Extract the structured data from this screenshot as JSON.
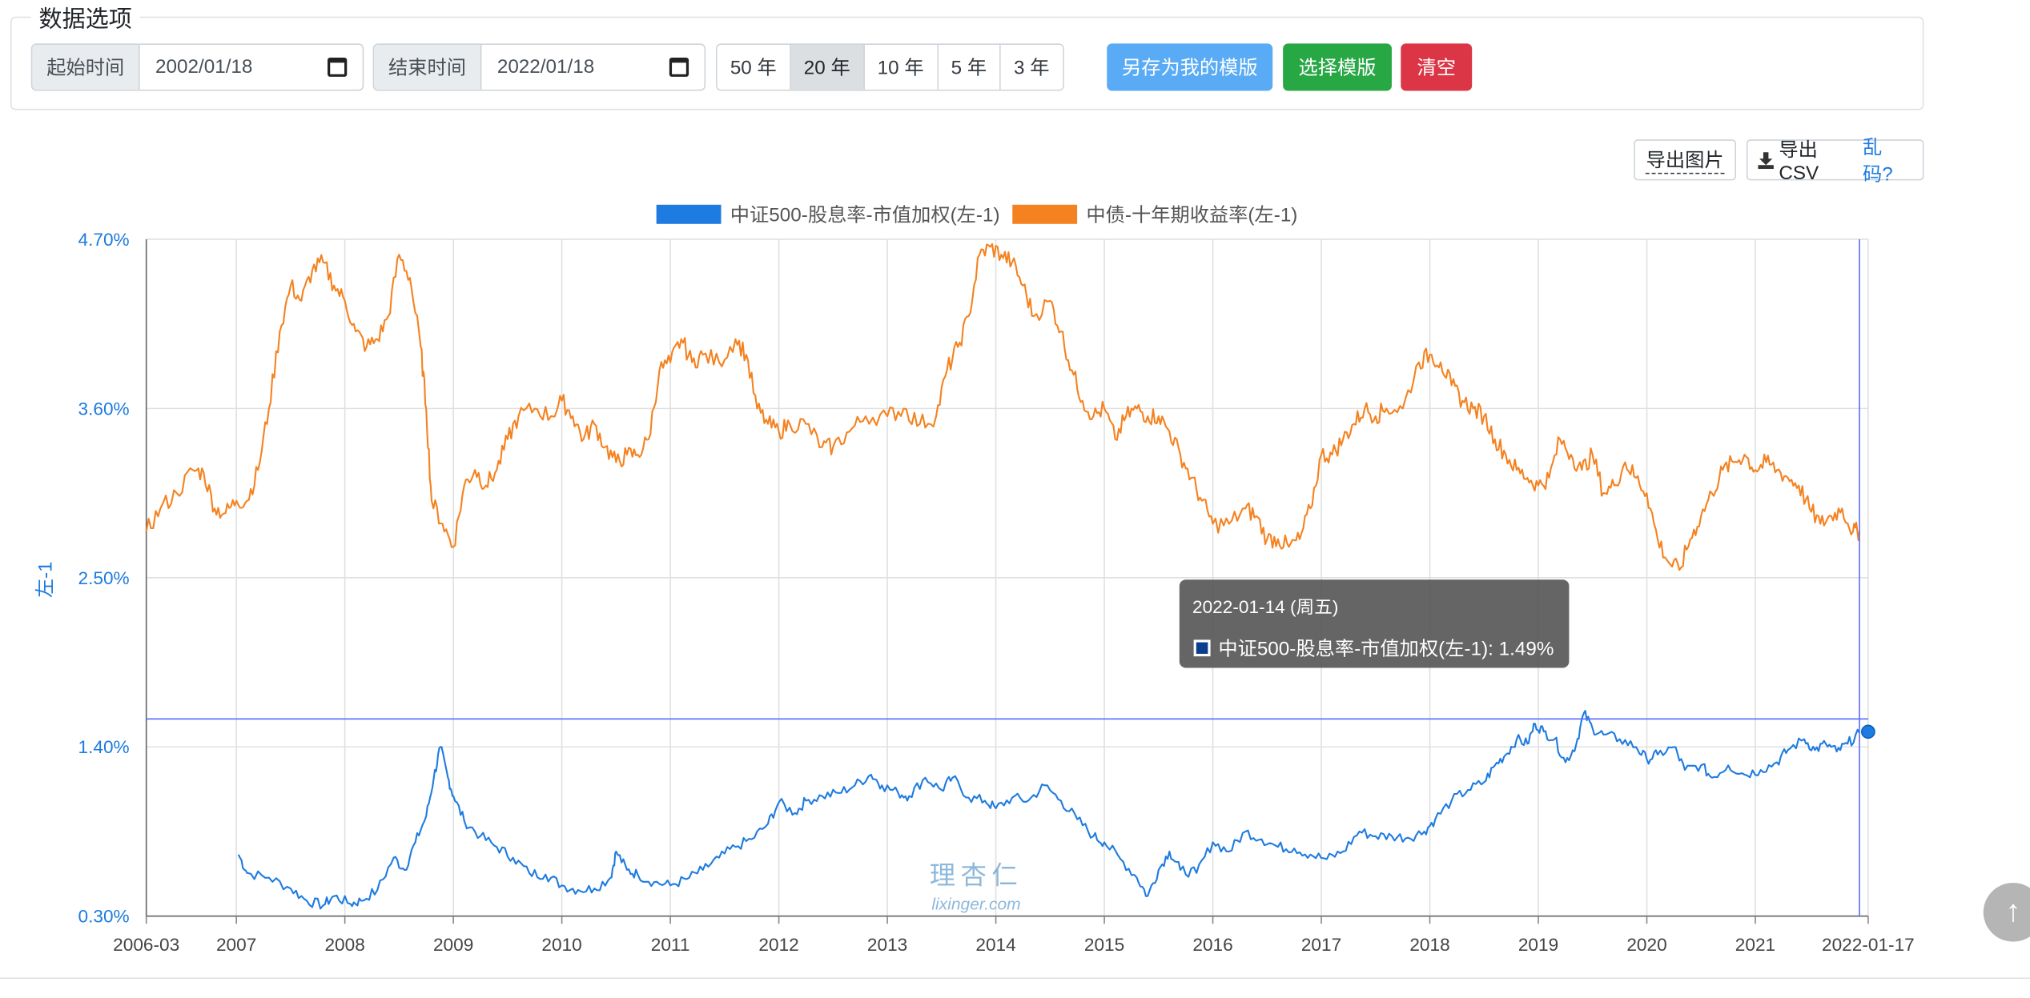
{
  "options": {
    "legend": "数据选项",
    "start_label": "起始时间",
    "start_value": "2002/01/18",
    "end_label": "结束时间",
    "end_value": "2022/01/18",
    "ranges": [
      "50 年",
      "20 年",
      "10 年",
      "5 年",
      "3 年"
    ],
    "active_range": "20 年",
    "save_template": "另存为我的模版",
    "choose_template": "选择模版",
    "clear": "清空"
  },
  "tools": {
    "export_image": "导出图片",
    "export_csv": "导出CSV",
    "garbled": "乱码?"
  },
  "tooltip": {
    "date": "2022-01-14 (周五)",
    "text": "中证500-股息率-市值加权(左-1): 1.49%"
  },
  "watermark": {
    "line1": "理杏仁",
    "line2": "lixinger.com"
  },
  "colors": {
    "blue": "#1e7be0",
    "orange": "#f58220",
    "axis_text": "#1e7be0",
    "save_btn": "#5aabf5",
    "choose_btn": "#28a745",
    "clear_btn": "#dc3545"
  },
  "chart_data": {
    "type": "line",
    "ylabel": "左-1",
    "y_ticks": [
      "0.30%",
      "1.40%",
      "2.50%",
      "3.60%",
      "4.70%"
    ],
    "ylim": [
      0.3,
      4.7
    ],
    "x_ticks": [
      {
        "label": "2006-03",
        "year": 2006.17
      },
      {
        "label": "2007",
        "year": 2007
      },
      {
        "label": "2008",
        "year": 2008
      },
      {
        "label": "2009",
        "year": 2009
      },
      {
        "label": "2010",
        "year": 2010
      },
      {
        "label": "2011",
        "year": 2011
      },
      {
        "label": "2012",
        "year": 2012
      },
      {
        "label": "2013",
        "year": 2013
      },
      {
        "label": "2014",
        "year": 2014
      },
      {
        "label": "2015",
        "year": 2015
      },
      {
        "label": "2016",
        "year": 2016
      },
      {
        "label": "2017",
        "year": 2017
      },
      {
        "label": "2018",
        "year": 2018
      },
      {
        "label": "2019",
        "year": 2019
      },
      {
        "label": "2020",
        "year": 2020
      },
      {
        "label": "2021",
        "year": 2021
      },
      {
        "label": "2022-01-17",
        "year": 2022.04
      }
    ],
    "xlim": [
      2006.17,
      2022.04
    ],
    "crosshair": {
      "year": 2021.96,
      "value": 1.49
    },
    "legend_position": "top-center",
    "grid": true,
    "series": [
      {
        "name": "中证500-股息率-市值加权(左-1)",
        "color": "#1e7be0",
        "points": [
          [
            2007.02,
            0.7
          ],
          [
            2007.1,
            0.58
          ],
          [
            2007.3,
            0.55
          ],
          [
            2007.5,
            0.48
          ],
          [
            2007.65,
            0.4
          ],
          [
            2007.8,
            0.37
          ],
          [
            2007.9,
            0.43
          ],
          [
            2008.05,
            0.38
          ],
          [
            2008.15,
            0.4
          ],
          [
            2008.3,
            0.47
          ],
          [
            2008.45,
            0.68
          ],
          [
            2008.55,
            0.6
          ],
          [
            2008.65,
            0.78
          ],
          [
            2008.75,
            0.95
          ],
          [
            2008.82,
            1.2
          ],
          [
            2008.88,
            1.4
          ],
          [
            2008.95,
            1.2
          ],
          [
            2009.0,
            1.08
          ],
          [
            2009.1,
            0.92
          ],
          [
            2009.25,
            0.82
          ],
          [
            2009.4,
            0.75
          ],
          [
            2009.55,
            0.68
          ],
          [
            2009.7,
            0.58
          ],
          [
            2009.85,
            0.57
          ],
          [
            2010.0,
            0.5
          ],
          [
            2010.15,
            0.47
          ],
          [
            2010.3,
            0.48
          ],
          [
            2010.45,
            0.55
          ],
          [
            2010.5,
            0.72
          ],
          [
            2010.6,
            0.6
          ],
          [
            2010.7,
            0.57
          ],
          [
            2010.85,
            0.52
          ],
          [
            2011.0,
            0.5
          ],
          [
            2011.15,
            0.54
          ],
          [
            2011.3,
            0.6
          ],
          [
            2011.45,
            0.68
          ],
          [
            2011.6,
            0.75
          ],
          [
            2011.75,
            0.8
          ],
          [
            2011.9,
            0.9
          ],
          [
            2012.0,
            1.04
          ],
          [
            2012.15,
            0.97
          ],
          [
            2012.25,
            1.05
          ],
          [
            2012.4,
            1.08
          ],
          [
            2012.55,
            1.1
          ],
          [
            2012.7,
            1.15
          ],
          [
            2012.85,
            1.22
          ],
          [
            2012.95,
            1.15
          ],
          [
            2013.1,
            1.1
          ],
          [
            2013.2,
            1.08
          ],
          [
            2013.35,
            1.2
          ],
          [
            2013.5,
            1.12
          ],
          [
            2013.6,
            1.2
          ],
          [
            2013.75,
            1.07
          ],
          [
            2013.9,
            1.05
          ],
          [
            2014.0,
            1.0
          ],
          [
            2014.15,
            1.07
          ],
          [
            2014.3,
            1.05
          ],
          [
            2014.45,
            1.15
          ],
          [
            2014.6,
            1.05
          ],
          [
            2014.75,
            0.93
          ],
          [
            2014.9,
            0.82
          ],
          [
            2015.0,
            0.78
          ],
          [
            2015.15,
            0.67
          ],
          [
            2015.3,
            0.55
          ],
          [
            2015.4,
            0.43
          ],
          [
            2015.5,
            0.6
          ],
          [
            2015.6,
            0.72
          ],
          [
            2015.7,
            0.6
          ],
          [
            2015.85,
            0.58
          ],
          [
            2016.0,
            0.78
          ],
          [
            2016.15,
            0.72
          ],
          [
            2016.3,
            0.85
          ],
          [
            2016.45,
            0.8
          ],
          [
            2016.6,
            0.75
          ],
          [
            2016.75,
            0.74
          ],
          [
            2016.9,
            0.7
          ],
          [
            2017.05,
            0.67
          ],
          [
            2017.2,
            0.72
          ],
          [
            2017.35,
            0.85
          ],
          [
            2017.5,
            0.82
          ],
          [
            2017.65,
            0.82
          ],
          [
            2017.8,
            0.81
          ],
          [
            2017.95,
            0.85
          ],
          [
            2018.05,
            0.93
          ],
          [
            2018.2,
            1.05
          ],
          [
            2018.35,
            1.12
          ],
          [
            2018.5,
            1.17
          ],
          [
            2018.6,
            1.28
          ],
          [
            2018.7,
            1.35
          ],
          [
            2018.8,
            1.45
          ],
          [
            2018.9,
            1.42
          ],
          [
            2018.97,
            1.55
          ],
          [
            2019.05,
            1.5
          ],
          [
            2019.15,
            1.45
          ],
          [
            2019.25,
            1.3
          ],
          [
            2019.35,
            1.42
          ],
          [
            2019.42,
            1.62
          ],
          [
            2019.5,
            1.52
          ],
          [
            2019.6,
            1.48
          ],
          [
            2019.75,
            1.45
          ],
          [
            2019.9,
            1.4
          ],
          [
            2020.0,
            1.32
          ],
          [
            2020.1,
            1.35
          ],
          [
            2020.25,
            1.4
          ],
          [
            2020.35,
            1.25
          ],
          [
            2020.5,
            1.28
          ],
          [
            2020.6,
            1.2
          ],
          [
            2020.75,
            1.28
          ],
          [
            2020.9,
            1.22
          ],
          [
            2021.05,
            1.25
          ],
          [
            2021.2,
            1.3
          ],
          [
            2021.3,
            1.38
          ],
          [
            2021.45,
            1.45
          ],
          [
            2021.55,
            1.38
          ],
          [
            2021.65,
            1.42
          ],
          [
            2021.75,
            1.37
          ],
          [
            2021.85,
            1.42
          ],
          [
            2021.96,
            1.49
          ]
        ]
      },
      {
        "name": "中债-十年期收益率(左-1)",
        "color": "#f58220",
        "points": [
          [
            2006.17,
            2.8
          ],
          [
            2006.3,
            2.95
          ],
          [
            2006.45,
            3.05
          ],
          [
            2006.6,
            3.2
          ],
          [
            2006.7,
            3.18
          ],
          [
            2006.8,
            2.95
          ],
          [
            2006.9,
            2.92
          ],
          [
            2007.0,
            3.0
          ],
          [
            2007.1,
            3.0
          ],
          [
            2007.2,
            3.2
          ],
          [
            2007.3,
            3.6
          ],
          [
            2007.4,
            4.1
          ],
          [
            2007.5,
            4.4
          ],
          [
            2007.6,
            4.3
          ],
          [
            2007.7,
            4.5
          ],
          [
            2007.8,
            4.55
          ],
          [
            2007.9,
            4.4
          ],
          [
            2008.0,
            4.3
          ],
          [
            2008.1,
            4.1
          ],
          [
            2008.2,
            4.0
          ],
          [
            2008.3,
            4.05
          ],
          [
            2008.4,
            4.2
          ],
          [
            2008.5,
            4.6
          ],
          [
            2008.6,
            4.45
          ],
          [
            2008.7,
            4.0
          ],
          [
            2008.75,
            3.6
          ],
          [
            2008.8,
            3.0
          ],
          [
            2008.9,
            2.85
          ],
          [
            2009.0,
            2.7
          ],
          [
            2009.1,
            3.1
          ],
          [
            2009.2,
            3.2
          ],
          [
            2009.3,
            3.1
          ],
          [
            2009.4,
            3.2
          ],
          [
            2009.5,
            3.4
          ],
          [
            2009.6,
            3.55
          ],
          [
            2009.75,
            3.6
          ],
          [
            2009.9,
            3.55
          ],
          [
            2010.0,
            3.65
          ],
          [
            2010.1,
            3.55
          ],
          [
            2010.2,
            3.4
          ],
          [
            2010.3,
            3.5
          ],
          [
            2010.4,
            3.35
          ],
          [
            2010.5,
            3.25
          ],
          [
            2010.6,
            3.3
          ],
          [
            2010.7,
            3.3
          ],
          [
            2010.8,
            3.4
          ],
          [
            2010.9,
            3.85
          ],
          [
            2011.0,
            3.9
          ],
          [
            2011.1,
            4.05
          ],
          [
            2011.2,
            3.9
          ],
          [
            2011.3,
            3.95
          ],
          [
            2011.45,
            3.9
          ],
          [
            2011.6,
            4.05
          ],
          [
            2011.7,
            3.95
          ],
          [
            2011.8,
            3.6
          ],
          [
            2011.9,
            3.5
          ],
          [
            2012.0,
            3.45
          ],
          [
            2012.1,
            3.5
          ],
          [
            2012.25,
            3.5
          ],
          [
            2012.4,
            3.35
          ],
          [
            2012.5,
            3.35
          ],
          [
            2012.65,
            3.45
          ],
          [
            2012.8,
            3.55
          ],
          [
            2013.0,
            3.55
          ],
          [
            2013.15,
            3.6
          ],
          [
            2013.3,
            3.5
          ],
          [
            2013.45,
            3.55
          ],
          [
            2013.55,
            3.85
          ],
          [
            2013.65,
            4.0
          ],
          [
            2013.75,
            4.2
          ],
          [
            2013.85,
            4.6
          ],
          [
            2013.95,
            4.65
          ],
          [
            2014.05,
            4.6
          ],
          [
            2014.15,
            4.55
          ],
          [
            2014.25,
            4.4
          ],
          [
            2014.35,
            4.2
          ],
          [
            2014.5,
            4.3
          ],
          [
            2014.6,
            4.1
          ],
          [
            2014.7,
            3.85
          ],
          [
            2014.8,
            3.65
          ],
          [
            2014.9,
            3.55
          ],
          [
            2015.0,
            3.6
          ],
          [
            2015.1,
            3.4
          ],
          [
            2015.2,
            3.55
          ],
          [
            2015.3,
            3.6
          ],
          [
            2015.4,
            3.55
          ],
          [
            2015.5,
            3.55
          ],
          [
            2015.6,
            3.45
          ],
          [
            2015.7,
            3.3
          ],
          [
            2015.8,
            3.15
          ],
          [
            2015.9,
            3.0
          ],
          [
            2016.0,
            2.85
          ],
          [
            2016.15,
            2.85
          ],
          [
            2016.3,
            2.95
          ],
          [
            2016.4,
            2.9
          ],
          [
            2016.5,
            2.75
          ],
          [
            2016.6,
            2.75
          ],
          [
            2016.7,
            2.7
          ],
          [
            2016.8,
            2.75
          ],
          [
            2016.9,
            2.95
          ],
          [
            2017.0,
            3.3
          ],
          [
            2017.1,
            3.3
          ],
          [
            2017.2,
            3.4
          ],
          [
            2017.3,
            3.5
          ],
          [
            2017.4,
            3.6
          ],
          [
            2017.5,
            3.55
          ],
          [
            2017.6,
            3.6
          ],
          [
            2017.75,
            3.6
          ],
          [
            2017.9,
            3.9
          ],
          [
            2018.0,
            3.95
          ],
          [
            2018.1,
            3.9
          ],
          [
            2018.2,
            3.75
          ],
          [
            2018.3,
            3.65
          ],
          [
            2018.4,
            3.6
          ],
          [
            2018.5,
            3.55
          ],
          [
            2018.6,
            3.4
          ],
          [
            2018.7,
            3.3
          ],
          [
            2018.8,
            3.2
          ],
          [
            2018.9,
            3.15
          ],
          [
            2019.0,
            3.1
          ],
          [
            2019.1,
            3.15
          ],
          [
            2019.2,
            3.4
          ],
          [
            2019.3,
            3.3
          ],
          [
            2019.4,
            3.2
          ],
          [
            2019.5,
            3.3
          ],
          [
            2019.6,
            3.05
          ],
          [
            2019.7,
            3.1
          ],
          [
            2019.8,
            3.25
          ],
          [
            2019.9,
            3.15
          ],
          [
            2020.0,
            3.05
          ],
          [
            2020.1,
            2.75
          ],
          [
            2020.2,
            2.6
          ],
          [
            2020.3,
            2.55
          ],
          [
            2020.4,
            2.75
          ],
          [
            2020.5,
            2.9
          ],
          [
            2020.6,
            3.05
          ],
          [
            2020.7,
            3.2
          ],
          [
            2020.8,
            3.25
          ],
          [
            2020.9,
            3.3
          ],
          [
            2021.0,
            3.2
          ],
          [
            2021.1,
            3.25
          ],
          [
            2021.2,
            3.2
          ],
          [
            2021.3,
            3.15
          ],
          [
            2021.4,
            3.1
          ],
          [
            2021.5,
            2.95
          ],
          [
            2021.6,
            2.85
          ],
          [
            2021.7,
            2.9
          ],
          [
            2021.8,
            2.95
          ],
          [
            2021.9,
            2.8
          ],
          [
            2021.96,
            2.8
          ]
        ]
      }
    ]
  }
}
